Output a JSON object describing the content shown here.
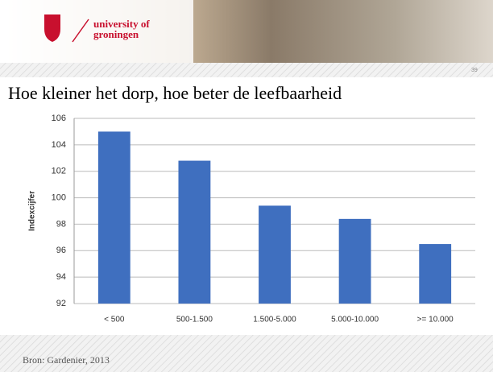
{
  "slide": {
    "logo_line1": "university of",
    "logo_line2": "groningen",
    "page_number": "39",
    "source": "Bron: Gardenier, 2013"
  },
  "chart_data": {
    "type": "bar",
    "title": "Hoe kleiner het dorp, hoe beter de leefbaarheid",
    "y_label": "Indexcijfer",
    "categories": [
      "< 500",
      "500-1.500",
      "1.500-5.000",
      "5.000-10.000",
      ">= 10.000"
    ],
    "values": [
      105.0,
      102.8,
      99.4,
      98.4,
      96.5
    ],
    "color": "#3f6fbf",
    "ylim": [
      92,
      106
    ],
    "yticks": [
      92,
      94,
      96,
      98,
      100,
      102,
      104,
      106
    ],
    "grid": true
  }
}
